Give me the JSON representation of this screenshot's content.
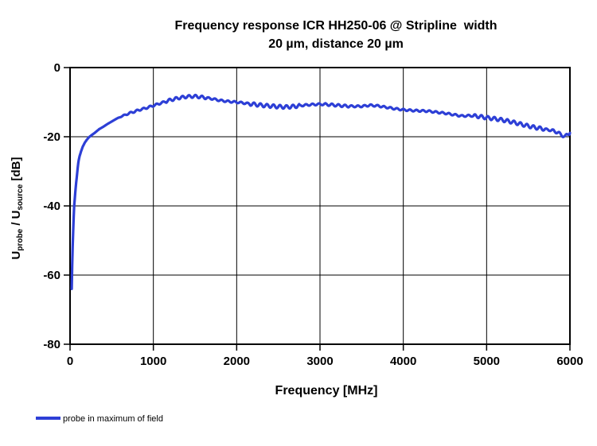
{
  "chart_data": {
    "type": "line",
    "title_line1": "Frequency response ICR HH250-06 @ Stripline  width",
    "title_line2": "20 µm, distance 20 µm",
    "xlabel": "Frequency [MHz]",
    "ylabel_parts": {
      "base1": "U",
      "sub1": "probe",
      "mid": " / U",
      "sub2": "source",
      "tail": " [dB]"
    },
    "xlim": [
      0,
      6000
    ],
    "ylim": [
      -80,
      0
    ],
    "x_ticks": [
      0,
      1000,
      2000,
      3000,
      4000,
      5000,
      6000
    ],
    "y_ticks": [
      0,
      -20,
      -40,
      -60,
      -80
    ],
    "grid": "major, black, on",
    "plot_border": "black",
    "legend": {
      "position": "bottom-left",
      "entries": [
        {
          "label": "probe in maximum of field",
          "color": "#2d3fd6"
        }
      ]
    },
    "series": [
      {
        "name": "probe in maximum of field",
        "color": "#2d3fd6",
        "stroke_width": 3.2,
        "points_unit": [
          "MHz",
          "dB"
        ],
        "envelope_points": [
          [
            20,
            -64
          ],
          [
            25,
            -58
          ],
          [
            30,
            -53.5
          ],
          [
            35,
            -49
          ],
          [
            40,
            -45.5
          ],
          [
            45,
            -42.5
          ],
          [
            50,
            -40
          ],
          [
            60,
            -36.8
          ],
          [
            70,
            -34.2
          ],
          [
            80,
            -31.8
          ],
          [
            90,
            -29.5
          ],
          [
            100,
            -27.2
          ],
          [
            115,
            -25.6
          ],
          [
            130,
            -24.4
          ],
          [
            150,
            -23.0
          ],
          [
            175,
            -21.8
          ],
          [
            200,
            -20.9
          ],
          [
            225,
            -20.2
          ],
          [
            250,
            -19.7
          ],
          [
            300,
            -18.8
          ],
          [
            350,
            -17.8
          ],
          [
            400,
            -17.1
          ],
          [
            450,
            -16.3
          ],
          [
            500,
            -15.6
          ],
          [
            550,
            -14.9
          ],
          [
            600,
            -14.3
          ],
          [
            650,
            -13.8
          ],
          [
            700,
            -13.3
          ],
          [
            750,
            -12.9
          ],
          [
            800,
            -12.5
          ],
          [
            850,
            -12.1
          ],
          [
            900,
            -11.8
          ],
          [
            950,
            -11.4
          ],
          [
            1000,
            -11.0
          ],
          [
            1100,
            -10.2
          ],
          [
            1200,
            -9.4
          ],
          [
            1300,
            -8.8
          ],
          [
            1400,
            -8.4
          ],
          [
            1500,
            -8.3
          ],
          [
            1600,
            -8.6
          ],
          [
            1700,
            -9.0
          ],
          [
            1800,
            -9.5
          ],
          [
            1900,
            -9.8
          ],
          [
            2000,
            -10.0
          ],
          [
            2100,
            -10.3
          ],
          [
            2200,
            -10.6
          ],
          [
            2300,
            -10.9
          ],
          [
            2400,
            -11.1
          ],
          [
            2500,
            -11.3
          ],
          [
            2600,
            -11.4
          ],
          [
            2700,
            -11.2
          ],
          [
            2800,
            -10.9
          ],
          [
            2900,
            -10.7
          ],
          [
            3000,
            -10.6
          ],
          [
            3100,
            -10.7
          ],
          [
            3200,
            -10.9
          ],
          [
            3300,
            -11.1
          ],
          [
            3400,
            -11.2
          ],
          [
            3500,
            -11.2
          ],
          [
            3600,
            -10.9
          ],
          [
            3700,
            -11.1
          ],
          [
            3800,
            -11.5
          ],
          [
            3900,
            -11.9
          ],
          [
            4000,
            -12.2
          ],
          [
            4100,
            -12.4
          ],
          [
            4200,
            -12.5
          ],
          [
            4300,
            -12.6
          ],
          [
            4400,
            -12.9
          ],
          [
            4500,
            -13.2
          ],
          [
            4600,
            -13.6
          ],
          [
            4700,
            -14.0
          ],
          [
            4800,
            -13.9
          ],
          [
            4900,
            -14.1
          ],
          [
            5000,
            -14.5
          ],
          [
            5100,
            -14.8
          ],
          [
            5200,
            -15.2
          ],
          [
            5300,
            -15.7
          ],
          [
            5400,
            -16.3
          ],
          [
            5500,
            -16.9
          ],
          [
            5600,
            -17.4
          ],
          [
            5700,
            -17.8
          ],
          [
            5800,
            -18.3
          ],
          [
            5850,
            -18.7
          ],
          [
            5900,
            -19.5
          ],
          [
            5940,
            -20.0
          ],
          [
            5970,
            -19.3
          ],
          [
            6000,
            -18.9
          ]
        ],
        "ripple": {
          "description": "small sinusoidal measurement ripple riding on the envelope",
          "period_mhz": 78,
          "base_amplitude_db": 0.25,
          "start_mhz": 550,
          "strong_segments": [
            [
              1150,
              1650,
              0.4
            ],
            [
              2150,
              2750,
              0.5
            ],
            [
              3050,
              3350,
              0.35
            ],
            [
              4850,
              5700,
              0.5
            ],
            [
              5780,
              6000,
              0.4
            ]
          ]
        }
      }
    ]
  }
}
